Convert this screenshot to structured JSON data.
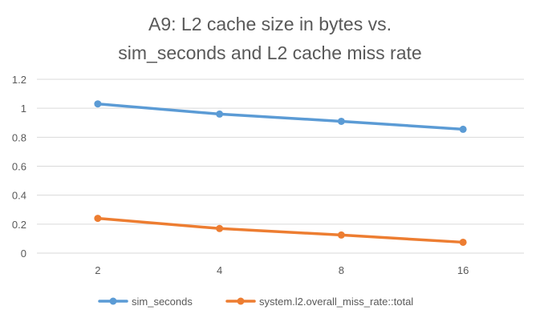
{
  "chart_data": {
    "type": "line",
    "title_lines": [
      "A9: L2 cache size in bytes vs.",
      "sim_seconds and L2 cache miss rate"
    ],
    "categories": [
      "2",
      "4",
      "8",
      "16"
    ],
    "series": [
      {
        "name": "sim_seconds",
        "color": "#5B9BD5",
        "values": [
          1.03,
          0.96,
          0.91,
          0.855
        ]
      },
      {
        "name": "system.l2.overall_miss_rate::total",
        "color": "#ED7D31",
        "values": [
          0.24,
          0.17,
          0.125,
          0.075
        ]
      }
    ],
    "y_ticks": [
      "0",
      "0.2",
      "0.4",
      "0.6",
      "0.8",
      "1",
      "1.2"
    ],
    "ylim": [
      0,
      1.2
    ],
    "xlabel": "",
    "ylabel": "",
    "grid": true,
    "legend_position": "bottom"
  }
}
